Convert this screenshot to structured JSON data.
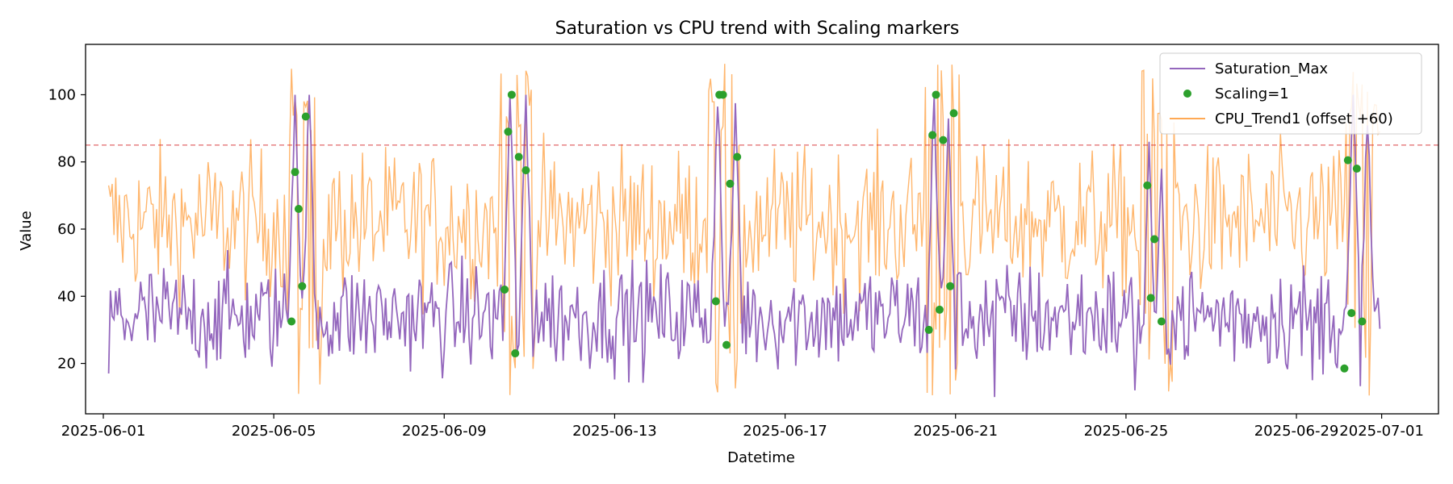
{
  "chart_data": {
    "type": "line",
    "title": "Saturation vs CPU trend with Scaling markers",
    "xlabel": "Datetime",
    "ylabel": "Value",
    "xlim": [
      "2025-05-31 14:00",
      "2025-07-02 08:00"
    ],
    "ylim": [
      5,
      115
    ],
    "x_ticks": [
      "2025-06-01",
      "2025-06-05",
      "2025-06-09",
      "2025-06-13",
      "2025-06-17",
      "2025-06-21",
      "2025-06-25",
      "2025-06-29",
      "2025-07-01"
    ],
    "y_ticks": [
      20,
      40,
      60,
      80,
      100
    ],
    "threshold": {
      "y": 85,
      "color": "#d62728",
      "style": "dashed"
    },
    "grid": false,
    "legend_position": "top-right",
    "series": [
      {
        "name": "Saturation_Max",
        "kind": "line",
        "color": "#9467bd",
        "baseline": 34,
        "amplitude": 10,
        "spikes": [
          [
            "2025-06-05 12:00",
            100
          ],
          [
            "2025-06-05 20:00",
            98
          ],
          [
            "2025-06-10 13:00",
            100
          ],
          [
            "2025-06-10 22:00",
            100
          ],
          [
            "2025-06-15 10:00",
            100
          ],
          [
            "2025-06-15 20:00",
            98
          ],
          [
            "2025-06-20 12:00",
            100
          ],
          [
            "2025-06-20 20:00",
            96
          ],
          [
            "2025-06-25 13:00",
            88
          ],
          [
            "2025-06-25 20:00",
            80
          ],
          [
            "2025-06-30 08:00",
            100
          ],
          [
            "2025-06-30 16:00",
            96
          ]
        ],
        "dips": [
          [
            "2025-06-01 03:00",
            17
          ],
          [
            "2025-06-21 22:00",
            10
          ],
          [
            "2025-06-25 05:00",
            12
          ],
          [
            "2025-06-29 09:00",
            15
          ]
        ]
      },
      {
        "name": "CPU_Trend1 (offset +60)",
        "kind": "line",
        "color": "#ffa954",
        "baseline": 62,
        "amplitude": 11,
        "clip": [
          10,
          110
        ],
        "burst_windows": [
          [
            "2025-06-05 08:00",
            "2025-06-06 03:00"
          ],
          [
            "2025-06-10 08:00",
            "2025-06-11 03:00"
          ],
          [
            "2025-06-15 05:00",
            "2025-06-16 00:00"
          ],
          [
            "2025-06-20 07:00",
            "2025-06-21 02:00"
          ],
          [
            "2025-06-25 08:00",
            "2025-06-26 03:00"
          ],
          [
            "2025-06-30 04:00",
            "2025-07-01 00:00"
          ]
        ]
      },
      {
        "name": "Scaling=1",
        "kind": "scatter",
        "color": "#2ca02c",
        "points": [
          [
            "2025-06-05 10:00",
            32.5
          ],
          [
            "2025-06-05 12:00",
            77
          ],
          [
            "2025-06-05 14:00",
            66
          ],
          [
            "2025-06-05 16:00",
            43
          ],
          [
            "2025-06-05 18:00",
            93.5
          ],
          [
            "2025-06-10 10:00",
            42
          ],
          [
            "2025-06-10 12:00",
            89
          ],
          [
            "2025-06-10 14:00",
            100
          ],
          [
            "2025-06-10 16:00",
            23
          ],
          [
            "2025-06-10 18:00",
            81.5
          ],
          [
            "2025-06-10 22:00",
            77.5
          ],
          [
            "2025-06-15 09:00",
            38.5
          ],
          [
            "2025-06-15 11:00",
            100
          ],
          [
            "2025-06-15 13:00",
            100
          ],
          [
            "2025-06-15 15:00",
            25.5
          ],
          [
            "2025-06-15 17:00",
            73.5
          ],
          [
            "2025-06-15 21:00",
            81.5
          ],
          [
            "2025-06-20 09:00",
            30
          ],
          [
            "2025-06-20 11:00",
            88
          ],
          [
            "2025-06-20 13:00",
            100
          ],
          [
            "2025-06-20 15:00",
            36
          ],
          [
            "2025-06-20 17:00",
            86.5
          ],
          [
            "2025-06-20 21:00",
            43
          ],
          [
            "2025-06-20 23:00",
            94.5
          ],
          [
            "2025-06-25 12:00",
            73
          ],
          [
            "2025-06-25 14:00",
            39.5
          ],
          [
            "2025-06-25 16:00",
            57
          ],
          [
            "2025-06-25 20:00",
            32.5
          ],
          [
            "2025-06-30 03:00",
            18.5
          ],
          [
            "2025-06-30 05:00",
            80.5
          ],
          [
            "2025-06-30 07:00",
            35
          ],
          [
            "2025-06-30 10:00",
            78
          ],
          [
            "2025-06-30 13:00",
            32.5
          ]
        ]
      }
    ]
  }
}
